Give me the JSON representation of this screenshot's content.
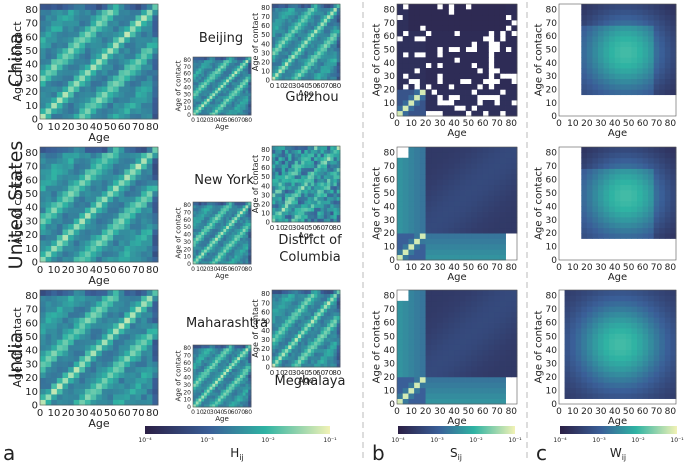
{
  "figure": {
    "panel_labels": [
      "a",
      "b",
      "c"
    ],
    "country_labels": [
      "China",
      "United States",
      "India"
    ],
    "axis": {
      "xlabel": "Age",
      "ylabel": "Age of contact",
      "ticks": [
        "0",
        "10",
        "20",
        "30",
        "40",
        "50",
        "60",
        "70",
        "80"
      ]
    },
    "colorbars": [
      {
        "label": "H",
        "subscript": "ij",
        "ticks": [
          "10⁻⁴",
          "10⁻³",
          "10⁻²",
          "10⁻¹"
        ]
      },
      {
        "label": "S",
        "subscript": "ij",
        "ticks": [
          "10⁻⁴",
          "10⁻³",
          "10⁻²",
          "10⁻¹"
        ]
      },
      {
        "label": "W",
        "subscript": "ij",
        "ticks": [
          "10⁻⁴",
          "10⁻³",
          "10⁻²",
          "10⁻¹"
        ]
      }
    ],
    "colors": {
      "dark": "#2b1f45",
      "mid": "#3a6f9e",
      "teal": "#2fb3a3",
      "light": "#f2f2b5",
      "divider": "#bbbbbb"
    }
  },
  "chart_data": [
    {
      "type": "heatmap",
      "row": "China",
      "matrix": "H",
      "region": "",
      "pattern": "household-diagonal-bands",
      "xlim": [
        0,
        84
      ],
      "ylim": [
        0,
        84
      ]
    },
    {
      "type": "heatmap",
      "row": "China",
      "matrix": "H",
      "region": "Beijing",
      "pattern": "household-diagonal-bands",
      "xlim": [
        0,
        84
      ],
      "ylim": [
        0,
        84
      ]
    },
    {
      "type": "heatmap",
      "row": "China",
      "matrix": "H",
      "region": "Guizhou",
      "pattern": "household-diagonal-bands",
      "xlim": [
        0,
        84
      ],
      "ylim": [
        0,
        84
      ]
    },
    {
      "type": "heatmap",
      "row": "China",
      "matrix": "S",
      "pattern": "school-sparse",
      "xlim": [
        0,
        84
      ],
      "ylim": [
        0,
        84
      ]
    },
    {
      "type": "heatmap",
      "row": "China",
      "matrix": "W",
      "pattern": "workplace-block",
      "xlim": [
        0,
        84
      ],
      "ylim": [
        0,
        84
      ]
    },
    {
      "type": "heatmap",
      "row": "United States",
      "matrix": "H",
      "region": "",
      "pattern": "household-diagonal-bands",
      "xlim": [
        0,
        84
      ],
      "ylim": [
        0,
        84
      ]
    },
    {
      "type": "heatmap",
      "row": "United States",
      "matrix": "H",
      "region": "New York",
      "pattern": "household-diagonal-bands",
      "xlim": [
        0,
        84
      ],
      "ylim": [
        0,
        84
      ]
    },
    {
      "type": "heatmap",
      "row": "United States",
      "matrix": "H",
      "region": "District of Columbia",
      "pattern": "household-noisy",
      "xlim": [
        0,
        84
      ],
      "ylim": [
        0,
        84
      ]
    },
    {
      "type": "heatmap",
      "row": "United States",
      "matrix": "S",
      "pattern": "school-block",
      "xlim": [
        0,
        84
      ],
      "ylim": [
        0,
        84
      ]
    },
    {
      "type": "heatmap",
      "row": "United States",
      "matrix": "W",
      "pattern": "workplace-block",
      "xlim": [
        0,
        84
      ],
      "ylim": [
        0,
        84
      ]
    },
    {
      "type": "heatmap",
      "row": "India",
      "matrix": "H",
      "region": "",
      "pattern": "household-diagonal-bands",
      "xlim": [
        0,
        84
      ],
      "ylim": [
        0,
        84
      ]
    },
    {
      "type": "heatmap",
      "row": "India",
      "matrix": "H",
      "region": "Maharashtra",
      "pattern": "household-diagonal-bands",
      "xlim": [
        0,
        84
      ],
      "ylim": [
        0,
        84
      ]
    },
    {
      "type": "heatmap",
      "row": "India",
      "matrix": "H",
      "region": "Meghalaya",
      "pattern": "household-diagonal-bands",
      "xlim": [
        0,
        84
      ],
      "ylim": [
        0,
        84
      ]
    },
    {
      "type": "heatmap",
      "row": "India",
      "matrix": "S",
      "pattern": "school-block",
      "xlim": [
        0,
        84
      ],
      "ylim": [
        0,
        84
      ]
    },
    {
      "type": "heatmap",
      "row": "India",
      "matrix": "W",
      "pattern": "workplace-block-wide",
      "xlim": [
        0,
        84
      ],
      "ylim": [
        0,
        84
      ]
    }
  ]
}
